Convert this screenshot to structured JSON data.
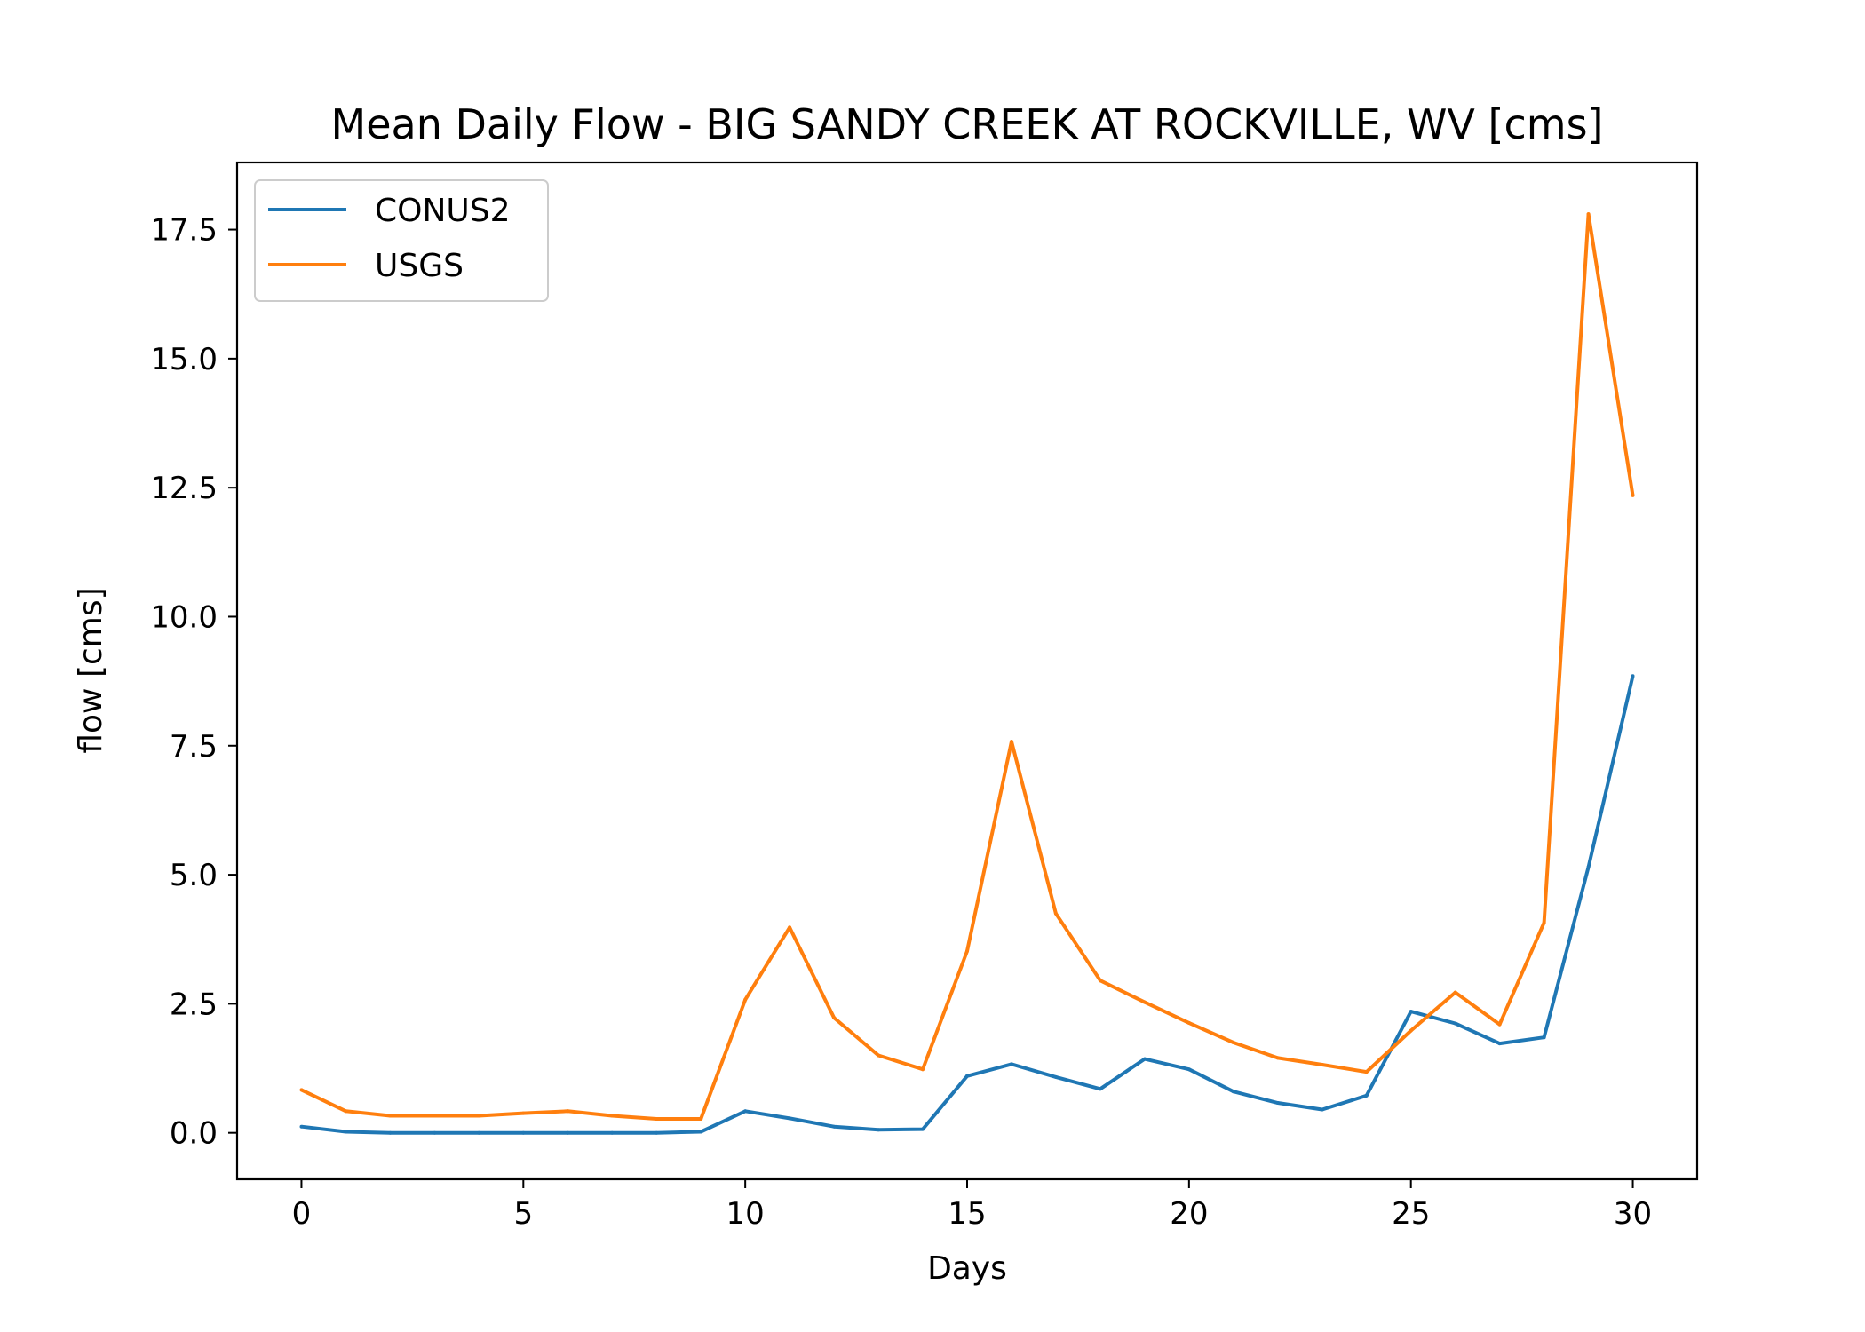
{
  "chart_data": {
    "type": "line",
    "title": "Mean Daily Flow - BIG SANDY CREEK AT ROCKVILLE, WV [cms]",
    "xlabel": "Days",
    "ylabel": "flow [cms]",
    "xlim": [
      -1.45,
      31.45
    ],
    "ylim": [
      -0.9,
      18.8
    ],
    "xticks": [
      0,
      5,
      10,
      15,
      20,
      25,
      30
    ],
    "xtick_labels": [
      "0",
      "5",
      "10",
      "15",
      "20",
      "25",
      "30"
    ],
    "yticks": [
      0,
      2.5,
      5,
      7.5,
      10,
      12.5,
      15,
      17.5
    ],
    "ytick_labels": [
      "0.0",
      "2.5",
      "5.0",
      "7.5",
      "10.0",
      "12.5",
      "15.0",
      "17.5"
    ],
    "grid": false,
    "legend_position": "top-left",
    "x": [
      0,
      1,
      2,
      3,
      4,
      5,
      6,
      7,
      8,
      9,
      10,
      11,
      12,
      13,
      14,
      15,
      16,
      17,
      18,
      19,
      20,
      21,
      22,
      23,
      24,
      25,
      26,
      27,
      28,
      29,
      30
    ],
    "series": [
      {
        "name": "CONUS2",
        "color": "#1f77b4",
        "values": [
          0.12,
          0.02,
          0.0,
          0.0,
          0.0,
          0.0,
          0.0,
          0.0,
          0.0,
          0.02,
          0.42,
          0.28,
          0.12,
          0.06,
          0.07,
          1.1,
          1.33,
          1.08,
          0.85,
          1.43,
          1.23,
          0.8,
          0.58,
          0.45,
          0.72,
          2.35,
          2.12,
          1.73,
          1.85,
          5.15,
          8.85
        ]
      },
      {
        "name": "USGS",
        "color": "#ff7f0e",
        "values": [
          0.83,
          0.42,
          0.33,
          0.33,
          0.33,
          0.38,
          0.42,
          0.33,
          0.27,
          0.27,
          2.58,
          3.98,
          2.23,
          1.5,
          1.23,
          3.52,
          7.58,
          4.25,
          2.95,
          2.53,
          2.13,
          1.75,
          1.45,
          1.32,
          1.18,
          1.98,
          2.72,
          2.1,
          4.07,
          17.8,
          12.35
        ]
      }
    ]
  }
}
